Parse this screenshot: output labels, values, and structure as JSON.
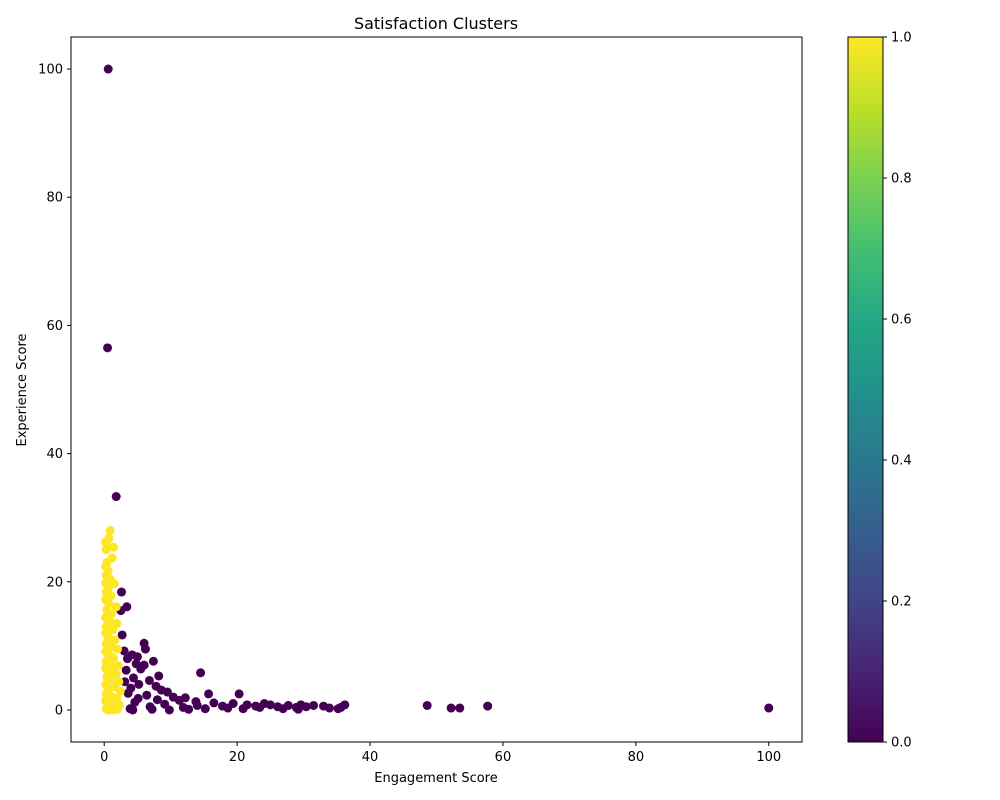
{
  "chart_data": {
    "type": "scatter",
    "title": "Satisfaction Clusters",
    "xlabel": "Engagement Score",
    "ylabel": "Experience Score",
    "xlim": [
      -5,
      105
    ],
    "ylim": [
      -5,
      105
    ],
    "x_ticks": [
      0,
      20,
      40,
      60,
      80,
      100
    ],
    "y_ticks": [
      0,
      20,
      40,
      60,
      80,
      100
    ],
    "grid": false,
    "colorbar": {
      "colormap": "viridis",
      "range": [
        0.0,
        1.0
      ],
      "ticks": [
        "0.0",
        "0.2",
        "0.4",
        "0.6",
        "0.8",
        "1.0"
      ],
      "low_color": "#440154",
      "high_color": "#fde725"
    },
    "series": [
      {
        "cluster": 0,
        "color": "#440154",
        "points": [
          [
            0.6,
            100.0
          ],
          [
            0.5,
            56.5
          ],
          [
            1.8,
            33.3
          ],
          [
            2.6,
            18.4
          ],
          [
            3.4,
            16.1
          ],
          [
            2.5,
            15.5
          ],
          [
            2.7,
            11.7
          ],
          [
            6.0,
            10.4
          ],
          [
            6.2,
            9.5
          ],
          [
            3.0,
            9.2
          ],
          [
            4.2,
            8.6
          ],
          [
            5.0,
            8.3
          ],
          [
            3.5,
            8.0
          ],
          [
            7.4,
            7.6
          ],
          [
            4.8,
            7.2
          ],
          [
            6.0,
            7.0
          ],
          [
            5.5,
            6.4
          ],
          [
            3.3,
            6.2
          ],
          [
            14.5,
            5.8
          ],
          [
            8.2,
            5.3
          ],
          [
            4.4,
            5.0
          ],
          [
            6.8,
            4.6
          ],
          [
            3.1,
            4.4
          ],
          [
            5.2,
            4.0
          ],
          [
            7.8,
            3.7
          ],
          [
            4.0,
            3.4
          ],
          [
            8.6,
            3.1
          ],
          [
            9.5,
            2.8
          ],
          [
            3.6,
            2.6
          ],
          [
            15.7,
            2.5
          ],
          [
            20.3,
            2.5
          ],
          [
            6.4,
            2.3
          ],
          [
            10.4,
            2.0
          ],
          [
            12.2,
            1.9
          ],
          [
            5.1,
            1.8
          ],
          [
            8.0,
            1.6
          ],
          [
            11.3,
            1.5
          ],
          [
            13.8,
            1.3
          ],
          [
            4.6,
            1.2
          ],
          [
            16.5,
            1.1
          ],
          [
            19.4,
            1.0
          ],
          [
            24.1,
            1.0
          ],
          [
            9.1,
            0.9
          ],
          [
            21.5,
            0.8
          ],
          [
            25.0,
            0.8
          ],
          [
            29.6,
            0.8
          ],
          [
            36.2,
            0.8
          ],
          [
            14.0,
            0.7
          ],
          [
            27.7,
            0.7
          ],
          [
            31.5,
            0.7
          ],
          [
            48.6,
            0.7
          ],
          [
            17.8,
            0.6
          ],
          [
            22.8,
            0.6
          ],
          [
            33.0,
            0.6
          ],
          [
            57.7,
            0.6
          ],
          [
            6.9,
            0.5
          ],
          [
            26.1,
            0.5
          ],
          [
            30.4,
            0.5
          ],
          [
            11.9,
            0.4
          ],
          [
            23.4,
            0.4
          ],
          [
            28.9,
            0.4
          ],
          [
            35.6,
            0.4
          ],
          [
            18.6,
            0.3
          ],
          [
            33.9,
            0.3
          ],
          [
            52.2,
            0.3
          ],
          [
            53.5,
            0.3
          ],
          [
            100.0,
            0.3
          ],
          [
            3.9,
            0.2
          ],
          [
            15.2,
            0.2
          ],
          [
            20.9,
            0.2
          ],
          [
            26.9,
            0.2
          ],
          [
            35.2,
            0.2
          ],
          [
            7.2,
            0.1
          ],
          [
            12.7,
            0.1
          ],
          [
            29.2,
            0.1
          ],
          [
            4.3,
            0.0
          ],
          [
            9.8,
            0.0
          ]
        ]
      },
      {
        "cluster": 1,
        "color": "#fde725",
        "points": [
          [
            0.9,
            28.0
          ],
          [
            0.2,
            26.2
          ],
          [
            0.7,
            26.8
          ],
          [
            0.5,
            25.6
          ],
          [
            1.4,
            25.4
          ],
          [
            0.3,
            25.0
          ],
          [
            1.2,
            23.7
          ],
          [
            0.4,
            23.0
          ],
          [
            0.2,
            22.4
          ],
          [
            0.6,
            21.7
          ],
          [
            0.3,
            21.0
          ],
          [
            0.9,
            20.4
          ],
          [
            0.2,
            19.8
          ],
          [
            1.5,
            19.7
          ],
          [
            0.6,
            19.0
          ],
          [
            0.3,
            18.4
          ],
          [
            1.0,
            17.8
          ],
          [
            0.2,
            17.2
          ],
          [
            0.7,
            16.6
          ],
          [
            1.8,
            16.1
          ],
          [
            0.4,
            15.6
          ],
          [
            1.1,
            15.0
          ],
          [
            0.2,
            14.4
          ],
          [
            0.8,
            13.8
          ],
          [
            1.9,
            13.5
          ],
          [
            0.3,
            13.0
          ],
          [
            1.3,
            12.5
          ],
          [
            0.2,
            12.0
          ],
          [
            0.6,
            11.4
          ],
          [
            1.6,
            10.9
          ],
          [
            0.3,
            10.3
          ],
          [
            1.0,
            9.8
          ],
          [
            2.0,
            9.5
          ],
          [
            0.2,
            9.1
          ],
          [
            0.7,
            8.6
          ],
          [
            1.4,
            8.1
          ],
          [
            0.3,
            7.6
          ],
          [
            0.9,
            7.1
          ],
          [
            2.1,
            6.9
          ],
          [
            0.2,
            6.5
          ],
          [
            1.2,
            6.0
          ],
          [
            1.8,
            5.6
          ],
          [
            0.4,
            5.2
          ],
          [
            0.9,
            4.8
          ],
          [
            2.2,
            4.4
          ],
          [
            0.2,
            4.0
          ],
          [
            1.5,
            3.6
          ],
          [
            0.6,
            3.2
          ],
          [
            2.4,
            2.9
          ],
          [
            0.3,
            2.5
          ],
          [
            1.1,
            2.1
          ],
          [
            1.9,
            1.8
          ],
          [
            0.2,
            1.4
          ],
          [
            0.8,
            1.0
          ],
          [
            2.3,
            0.8
          ],
          [
            1.4,
            0.5
          ],
          [
            0.3,
            0.2
          ],
          [
            2.0,
            0.1
          ],
          [
            0.6,
            0.0
          ],
          [
            1.2,
            0.0
          ]
        ]
      }
    ]
  }
}
